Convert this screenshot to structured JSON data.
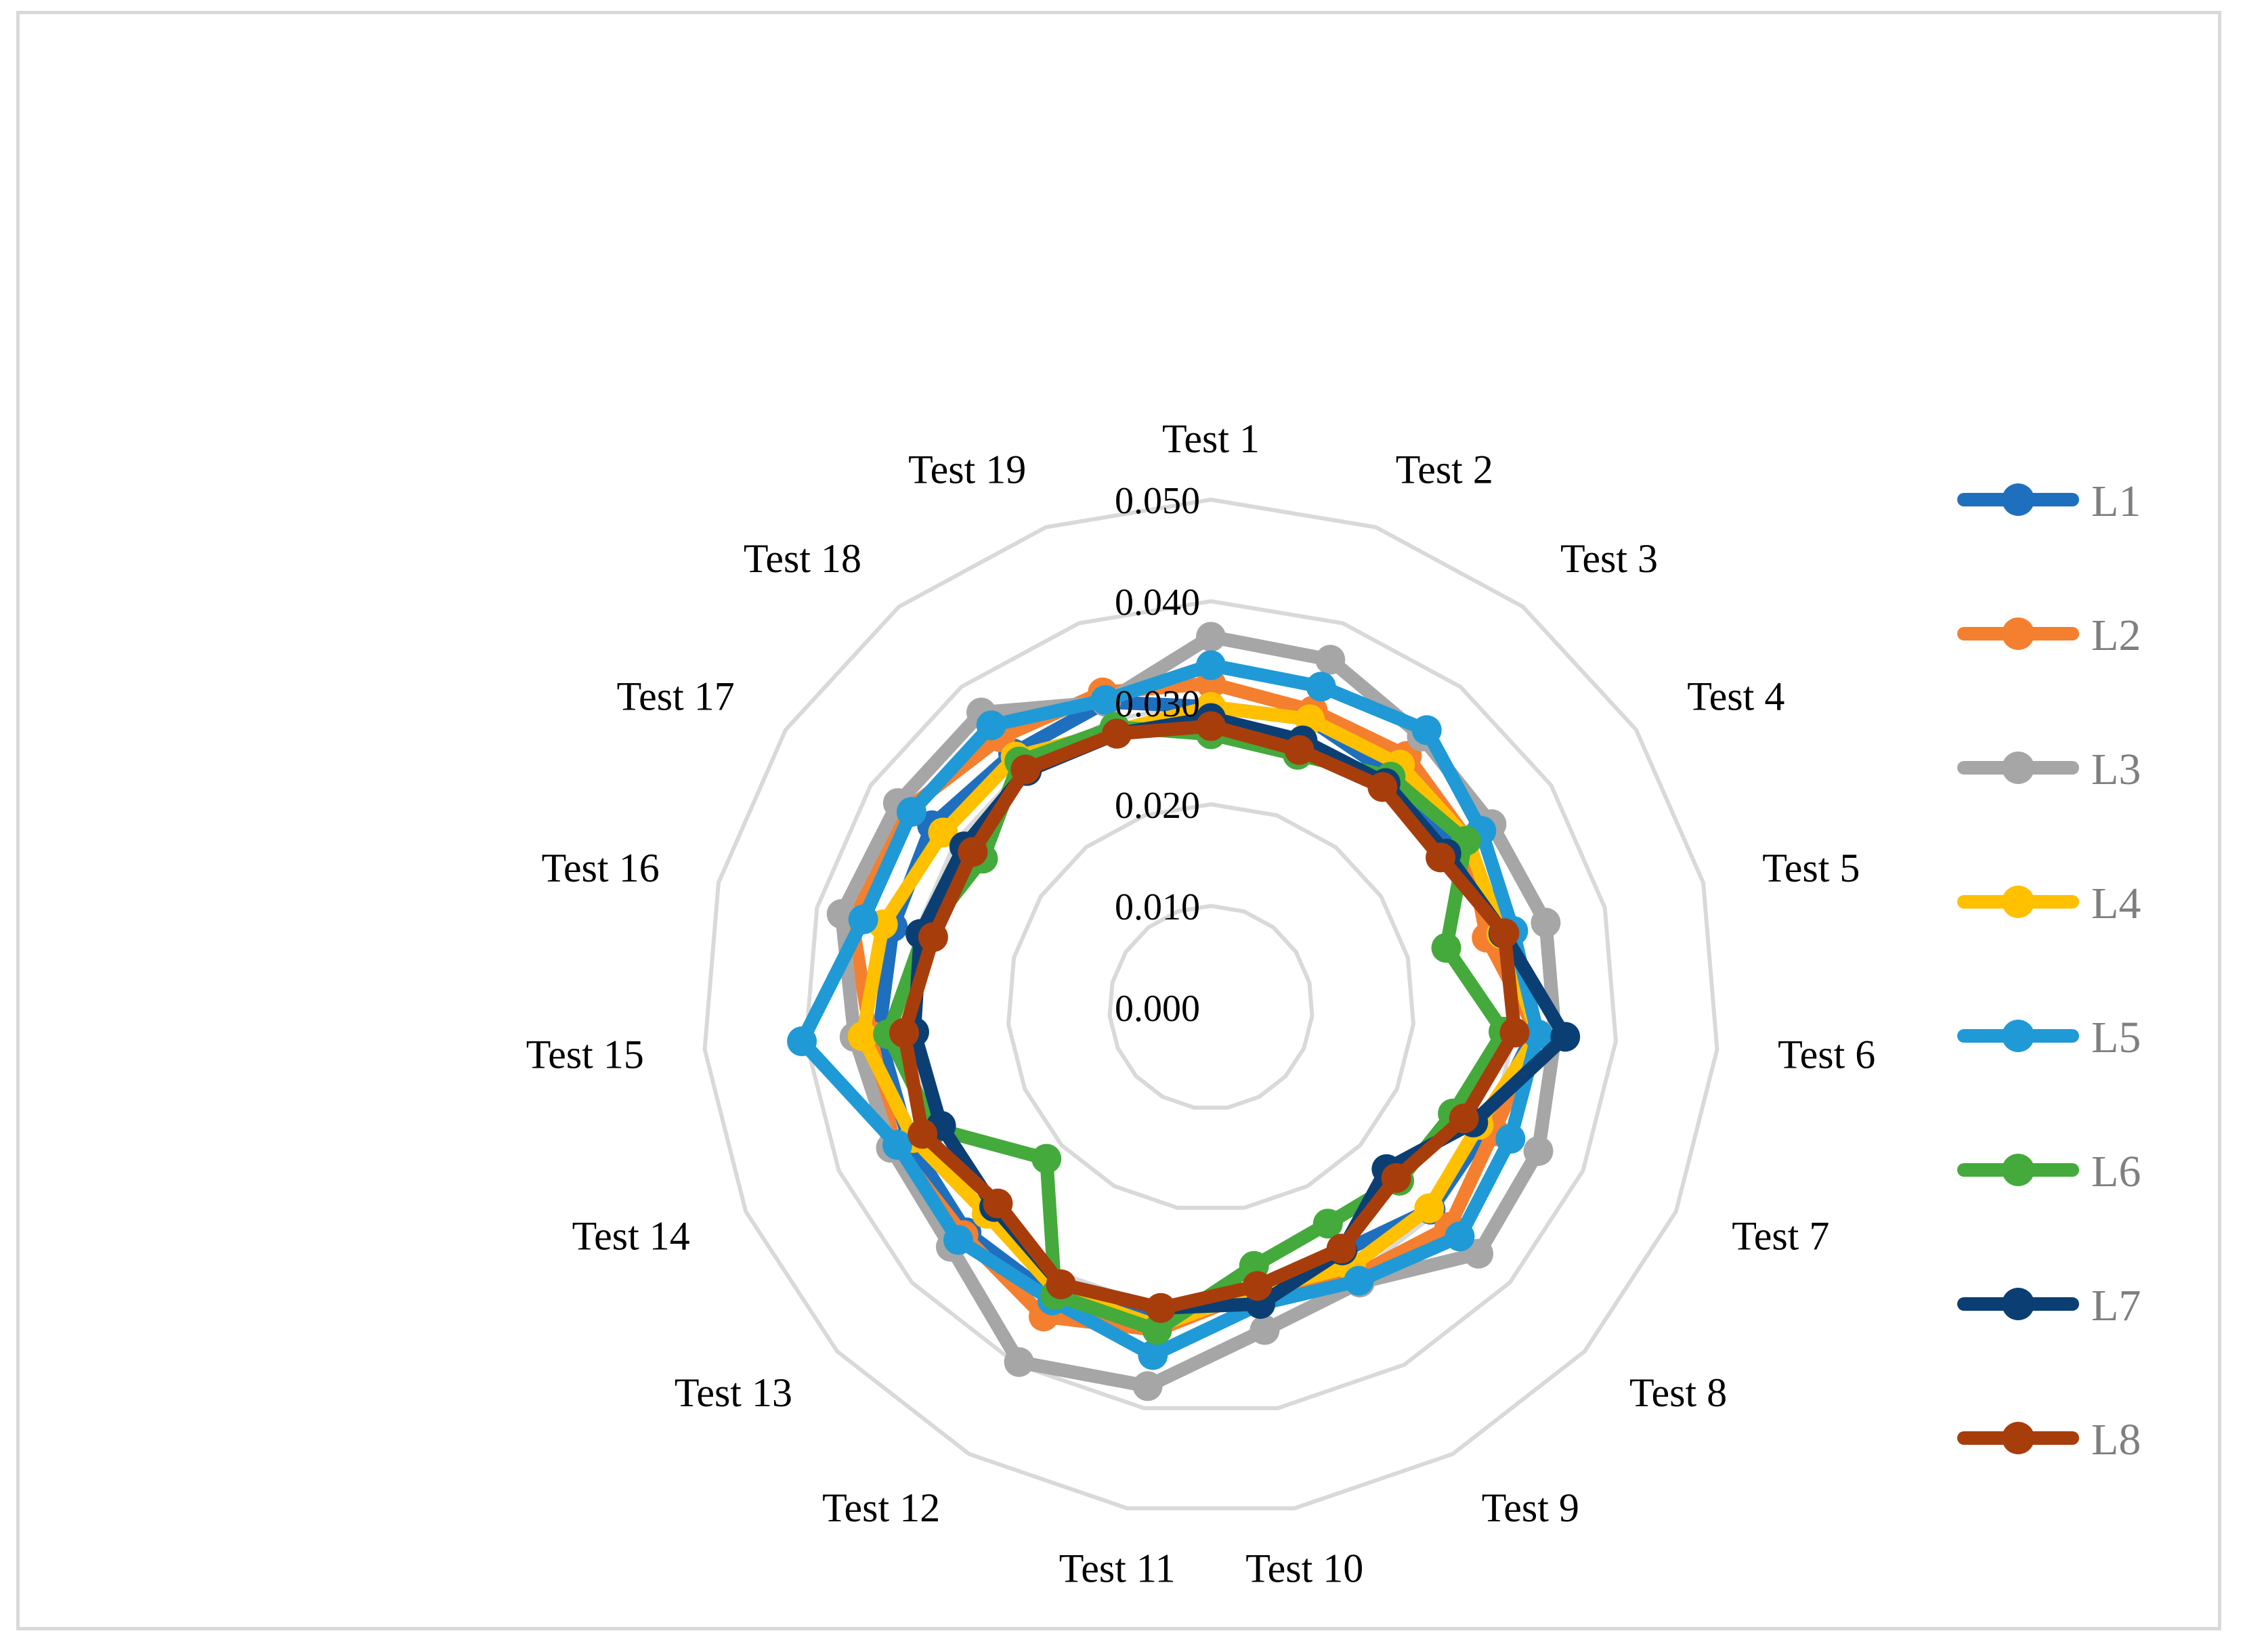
{
  "chart_data": {
    "type": "radar",
    "categories": [
      "Test 1",
      "Test 2",
      "Test 3",
      "Test 4",
      "Test 5",
      "Test 6",
      "Test 7",
      "Test 8",
      "Test 9",
      "Test 10",
      "Test 11",
      "Test 12",
      "Test 13",
      "Test 14",
      "Test 15",
      "Test 16",
      "Test 17",
      "Test 18",
      "Test 19"
    ],
    "radial_ticks": [
      "0.000",
      "0.010",
      "0.020",
      "0.030",
      "0.040",
      "0.050"
    ],
    "range": [
      0,
      0.05
    ],
    "grid": true,
    "legend_position": "right",
    "series": [
      {
        "name": "L1",
        "color": "#1f6fbf",
        "values": [
          0.0296,
          0.03,
          0.029,
          0.029,
          0.0305,
          0.0318,
          0.0296,
          0.0294,
          0.0273,
          0.0283,
          0.0303,
          0.0325,
          0.0327,
          0.0325,
          0.0328,
          0.0323,
          0.0328,
          0.0317,
          0.0318
        ]
      },
      {
        "name": "L2",
        "color": "#f47f2f",
        "values": [
          0.0319,
          0.0309,
          0.0314,
          0.0302,
          0.028,
          0.0323,
          0.0304,
          0.0319,
          0.03,
          0.0282,
          0.0322,
          0.0346,
          0.0331,
          0.034,
          0.0336,
          0.0365,
          0.0357,
          0.0337,
          0.0328
        ]
      },
      {
        "name": "L3",
        "color": "#a6a6a6",
        "values": [
          0.0365,
          0.0362,
          0.0338,
          0.033,
          0.034,
          0.034,
          0.0352,
          0.0358,
          0.0308,
          0.0322,
          0.0378,
          0.0397,
          0.0348,
          0.0344,
          0.0352,
          0.0375,
          0.0368,
          0.0368,
          0.0318
        ]
      },
      {
        "name": "L4",
        "color": "#ffc000",
        "values": [
          0.0296,
          0.03,
          0.0303,
          0.0302,
          0.0295,
          0.0323,
          0.0288,
          0.0292,
          0.029,
          0.0282,
          0.0318,
          0.0318,
          0.03,
          0.032,
          0.0344,
          0.0333,
          0.0315,
          0.0313,
          0.0288
        ]
      },
      {
        "name": "L5",
        "color": "#1f9ad6",
        "values": [
          0.0337,
          0.0334,
          0.0346,
          0.0318,
          0.0307,
          0.0323,
          0.0322,
          0.0333,
          0.0306,
          0.0296,
          0.0347,
          0.0328,
          0.0338,
          0.0337,
          0.0404,
          0.0353,
          0.0352,
          0.0352,
          0.032
        ]
      },
      {
        "name": "L6",
        "color": "#44aa3c",
        "values": [
          0.0269,
          0.0263,
          0.0288,
          0.03,
          0.0239,
          0.0289,
          0.026,
          0.0252,
          0.0242,
          0.0258,
          0.0322,
          0.0322,
          0.022,
          0.0297,
          0.0319,
          0.0292,
          0.0268,
          0.0307,
          0.0292
        ]
      },
      {
        "name": "L7",
        "color": "#0b3f73",
        "values": [
          0.0285,
          0.0278,
          0.028,
          0.0277,
          0.0297,
          0.035,
          0.0282,
          0.0235,
          0.0272,
          0.0296,
          0.03,
          0.031,
          0.029,
          0.029,
          0.0293,
          0.0295,
          0.029,
          0.0295,
          0.0285
        ]
      },
      {
        "name": "L8",
        "color": "#a83d0c",
        "values": [
          0.0277,
          0.0268,
          0.0275,
          0.027,
          0.0298,
          0.03,
          0.0272,
          0.0248,
          0.027,
          0.0278,
          0.03,
          0.031,
          0.0285,
          0.031,
          0.0303,
          0.0282,
          0.028,
          0.0297,
          0.0285
        ]
      }
    ]
  }
}
